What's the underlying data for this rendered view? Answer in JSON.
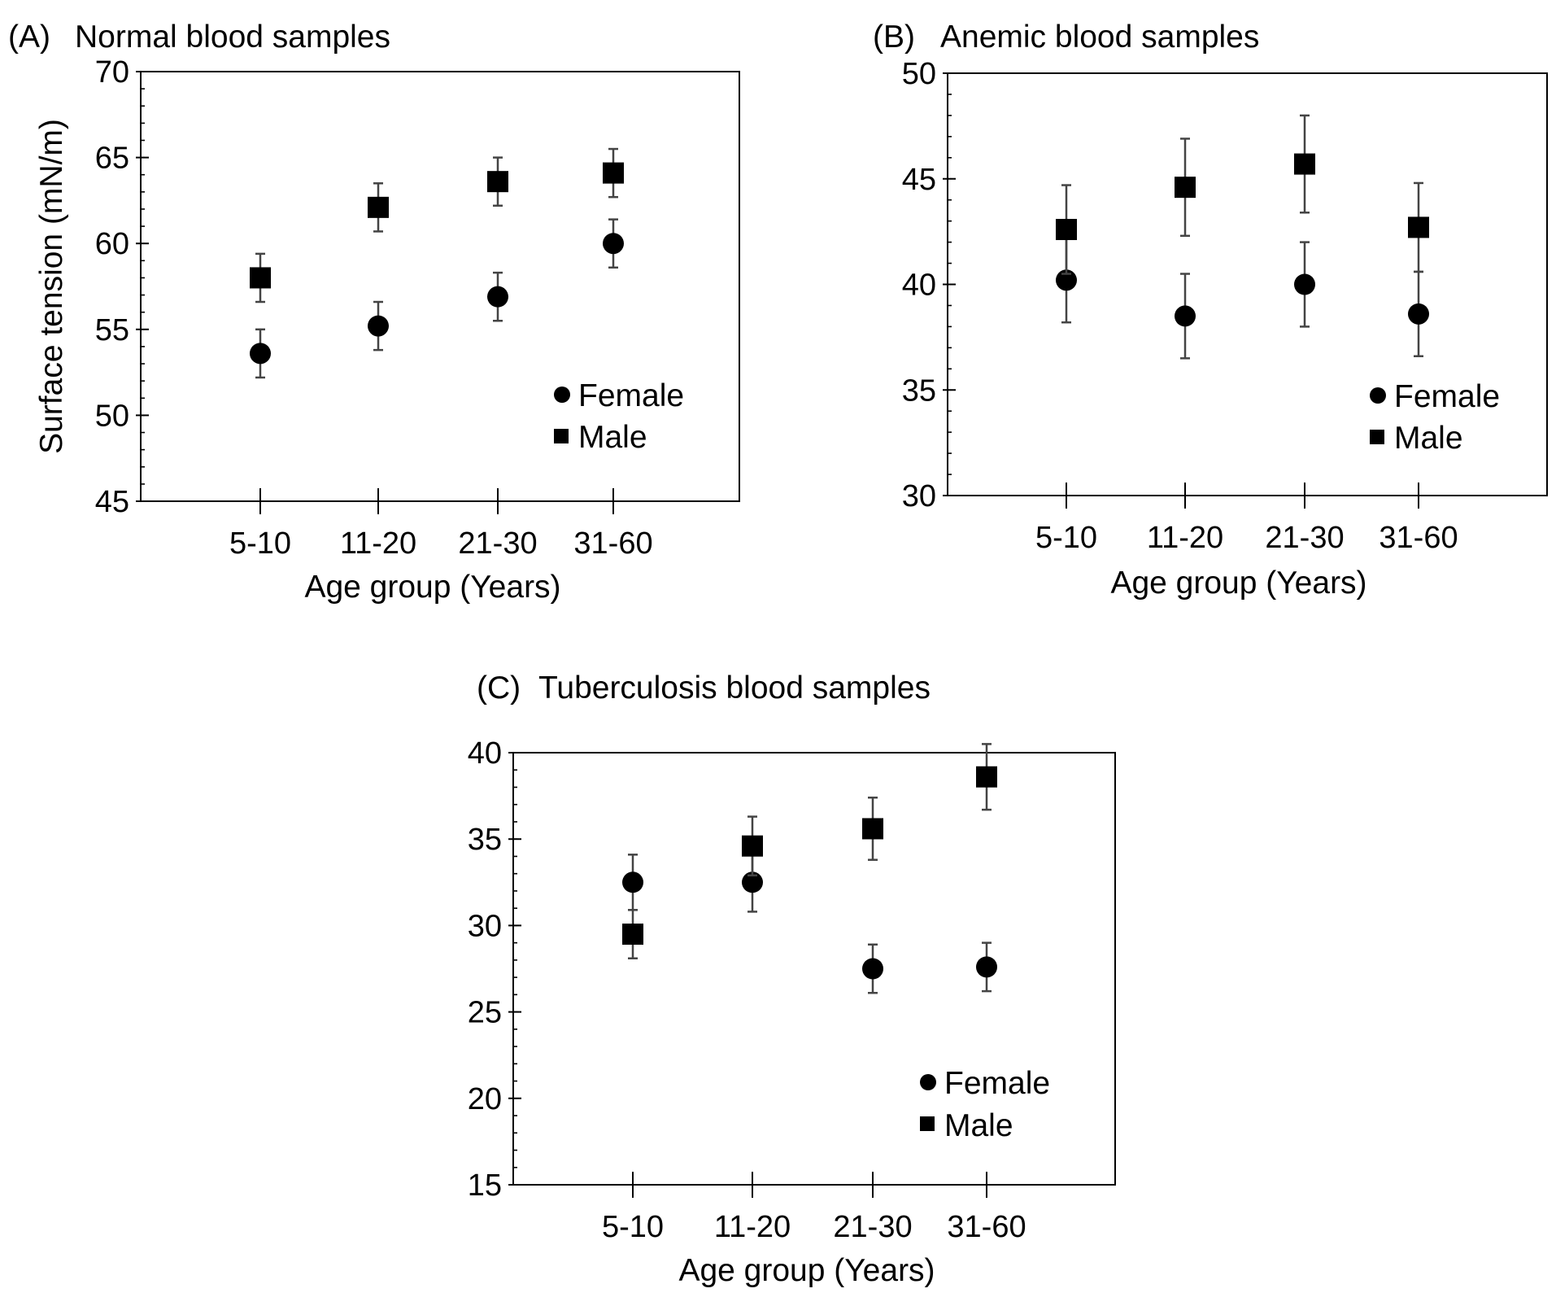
{
  "figure": {
    "background": "#ffffff",
    "ink": "#000000",
    "errorbar_color": "#444444"
  },
  "chart_data": [
    {
      "type": "scatter",
      "panel_label": "(A)",
      "title": "Normal blood samples",
      "xlabel": "Age group (Years)",
      "ylabel": "Surface tension (mN/m)",
      "categories": [
        "5-10",
        "11-20",
        "21-30",
        "31-60"
      ],
      "ylim": [
        45,
        70
      ],
      "yticks": [
        45,
        50,
        55,
        60,
        65,
        70
      ],
      "grid": false,
      "legend_position": "bottom-right",
      "series": [
        {
          "name": "Female",
          "marker": "circle",
          "values": [
            53.6,
            55.2,
            56.9,
            60.0
          ],
          "errors": [
            1.4,
            1.4,
            1.4,
            1.4
          ]
        },
        {
          "name": "Male",
          "marker": "square",
          "values": [
            58.0,
            62.1,
            63.6,
            64.1
          ],
          "errors": [
            1.4,
            1.4,
            1.4,
            1.4
          ]
        }
      ]
    },
    {
      "type": "scatter",
      "panel_label": "(B)",
      "title": "Anemic blood samples",
      "xlabel": "Age group (Years)",
      "ylabel": "",
      "categories": [
        "5-10",
        "11-20",
        "21-30",
        "31-60"
      ],
      "ylim": [
        30,
        50
      ],
      "yticks": [
        30,
        35,
        40,
        45,
        50
      ],
      "grid": false,
      "legend_position": "bottom-right",
      "series": [
        {
          "name": "Female",
          "marker": "circle",
          "values": [
            40.2,
            38.5,
            40.0,
            38.6
          ],
          "errors": [
            2.0,
            2.0,
            2.0,
            2.0
          ]
        },
        {
          "name": "Male",
          "marker": "square",
          "values": [
            42.6,
            44.6,
            45.7,
            42.7
          ],
          "errors": [
            2.1,
            2.3,
            2.3,
            2.1
          ]
        }
      ]
    },
    {
      "type": "scatter",
      "panel_label": "(C)",
      "title": "Tuberculosis blood samples",
      "xlabel": "Age group (Years)",
      "ylabel": "",
      "categories": [
        "5-10",
        "11-20",
        "21-30",
        "31-60"
      ],
      "ylim": [
        15,
        40
      ],
      "yticks": [
        15,
        20,
        25,
        30,
        35,
        40
      ],
      "grid": false,
      "legend_position": "bottom-right",
      "series": [
        {
          "name": "Female",
          "marker": "circle",
          "values": [
            32.5,
            32.5,
            27.5,
            27.6
          ],
          "errors": [
            1.6,
            1.7,
            1.4,
            1.4
          ]
        },
        {
          "name": "Male",
          "marker": "square",
          "values": [
            29.5,
            34.6,
            35.6,
            38.6
          ],
          "errors": [
            1.4,
            1.7,
            1.8,
            1.9
          ]
        }
      ]
    }
  ]
}
